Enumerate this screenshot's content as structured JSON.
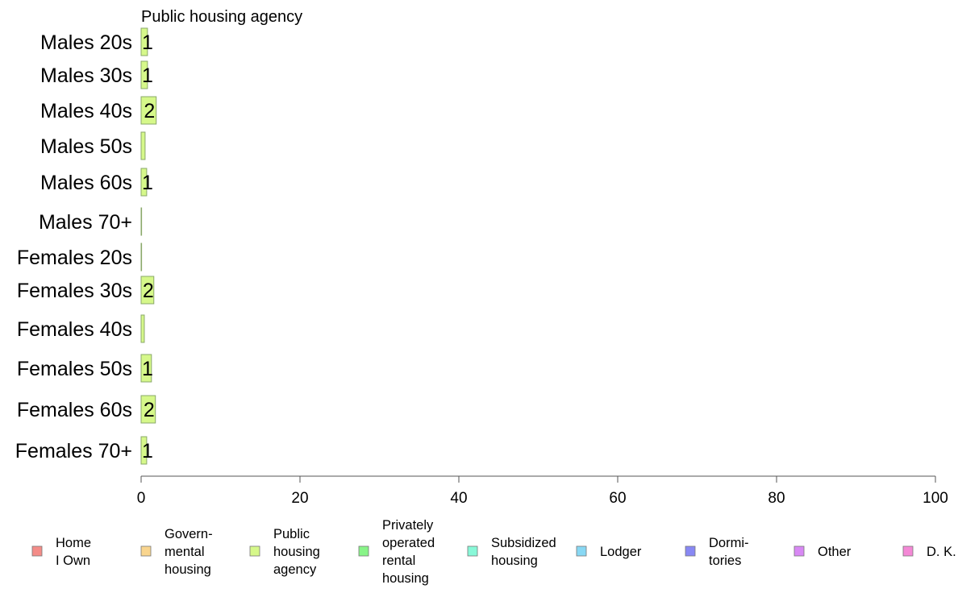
{
  "chart_data": {
    "type": "bar",
    "orientation": "horizontal",
    "title": "Public housing agency",
    "categories": [
      "Males 20s",
      "Males 30s",
      "Males 40s",
      "Males 50s",
      "Males 60s",
      "Males 70+",
      "Females 20s",
      "Females 30s",
      "Females 40s",
      "Females 50s",
      "Females 60s",
      "Females 70+"
    ],
    "values": [
      0.8,
      0.8,
      1.9,
      0.5,
      0.7,
      0.0,
      0.0,
      1.6,
      0.4,
      1.3,
      1.8,
      0.7
    ],
    "labels": [
      "1",
      "1",
      "2",
      "",
      "1",
      "",
      "",
      "2",
      "",
      "1",
      "2",
      "1"
    ],
    "xlim": [
      0,
      100
    ],
    "xticks": [
      "0",
      "20",
      "40",
      "60",
      "80",
      "100"
    ],
    "xlabel": "",
    "ylabel": "",
    "bar_color": "#D6F88A",
    "bar_stroke": "#8AA86A",
    "legend": {
      "placement": "bottom",
      "items": [
        {
          "lines": [
            "Home",
            "I Own"
          ],
          "color": "#F48C88"
        },
        {
          "lines": [
            "Govern-",
            "mental",
            " housing"
          ],
          "color": "#F9D58E"
        },
        {
          "lines": [
            "Public",
            "housing",
            "agency"
          ],
          "color": "#D6F88A"
        },
        {
          "lines": [
            "Privately",
            "operated",
            "rental",
            "housing"
          ],
          "color": "#88F488"
        },
        {
          "lines": [
            "Subsidized",
            " housing"
          ],
          "color": "#88F8D8"
        },
        {
          "lines": [
            "Lodger"
          ],
          "color": "#88D8F4"
        },
        {
          "lines": [
            "Dormi-",
            "tories"
          ],
          "color": "#8888F4"
        },
        {
          "lines": [
            "Other"
          ],
          "color": "#D888F4"
        },
        {
          "lines": [
            "D. K."
          ],
          "color": "#F488D6"
        }
      ]
    }
  }
}
